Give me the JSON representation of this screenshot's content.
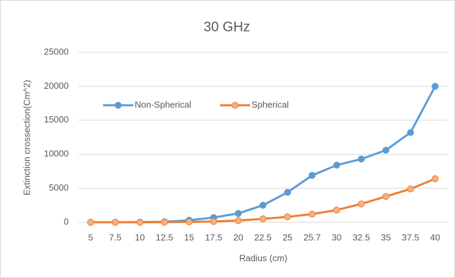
{
  "chart_data": {
    "type": "line",
    "title": "30 GHz",
    "x_label": "Radius (cm)",
    "y_label": "Extinction crossection(Cm^2)",
    "categories": [
      "5",
      "7.5",
      "10",
      "12.5",
      "15",
      "17.5",
      "20",
      "22.5",
      "25",
      "25.7",
      "30",
      "32.5",
      "35",
      "37.5",
      "40"
    ],
    "series": [
      {
        "name": "Non-Spherical",
        "color": "#5b9bd5",
        "marker_fill": "#5b9bd5",
        "values": [
          0,
          0,
          20,
          80,
          300,
          700,
          1300,
          2500,
          4400,
          6900,
          8400,
          9300,
          10600,
          13200,
          20000
        ]
      },
      {
        "name": "Spherical",
        "color": "#ed7d31",
        "marker_fill": "#f4b183",
        "values": [
          0,
          0,
          0,
          10,
          50,
          120,
          250,
          500,
          800,
          1200,
          1800,
          2700,
          3800,
          4900,
          6400
        ]
      }
    ],
    "ylim": [
      0,
      25000
    ],
    "yticks": [
      0,
      5000,
      10000,
      15000,
      20000,
      25000
    ],
    "grid": true
  }
}
